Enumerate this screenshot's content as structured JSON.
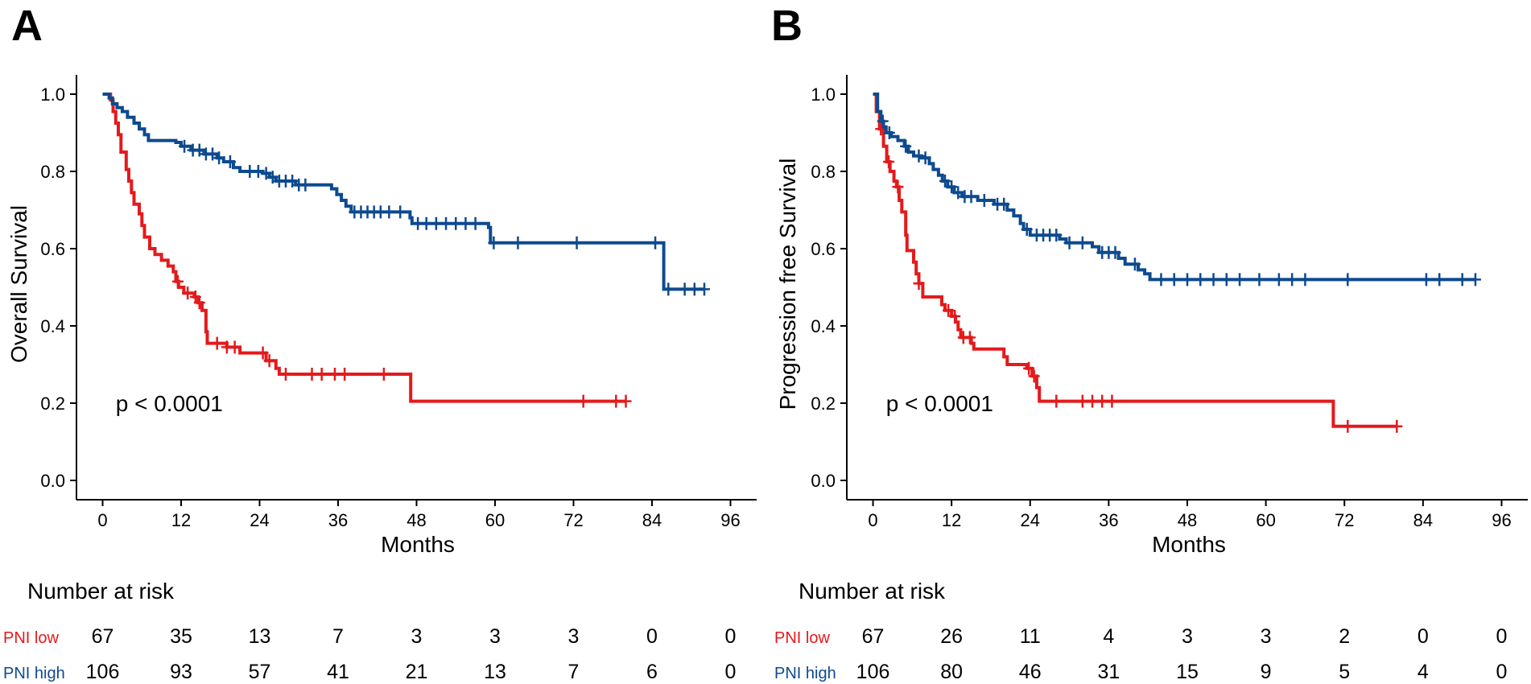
{
  "colors": {
    "low": "#e31a1c",
    "high": "#0d4a8f",
    "axis": "#000000"
  },
  "chart_data": [
    {
      "type": "line",
      "panel": "A",
      "ylabel": "Overall Survival",
      "xlabel": "Months",
      "xlim": [
        -4,
        100
      ],
      "ylim": [
        -0.05,
        1.05
      ],
      "xticks": [
        0,
        12,
        24,
        36,
        48,
        60,
        72,
        84,
        96
      ],
      "yticks": [
        0.0,
        0.2,
        0.4,
        0.6,
        0.8,
        1.0
      ],
      "ytick_labels": [
        "0.0",
        "0.2",
        "0.4",
        "0.6",
        "0.8",
        "1.0"
      ],
      "annotation": "p < 0.0001",
      "annotation_at": [
        2,
        0.2
      ],
      "series": [
        {
          "name": "PNI low",
          "color_key": "low",
          "points": [
            [
              0,
              1.0
            ],
            [
              1.2,
              0.985
            ],
            [
              1.6,
              0.955
            ],
            [
              2.0,
              0.925
            ],
            [
              2.4,
              0.895
            ],
            [
              2.8,
              0.85
            ],
            [
              3.6,
              0.805
            ],
            [
              4.0,
              0.775
            ],
            [
              4.4,
              0.745
            ],
            [
              4.8,
              0.715
            ],
            [
              5.6,
              0.69
            ],
            [
              6.0,
              0.66
            ],
            [
              6.4,
              0.63
            ],
            [
              7.2,
              0.6
            ],
            [
              8.0,
              0.585
            ],
            [
              9.0,
              0.57
            ],
            [
              10.0,
              0.555
            ],
            [
              10.8,
              0.54
            ],
            [
              11.2,
              0.515
            ],
            [
              11.6,
              0.5
            ],
            [
              12.4,
              0.485
            ],
            [
              14.0,
              0.475
            ],
            [
              14.6,
              0.46
            ],
            [
              15.2,
              0.44
            ],
            [
              15.8,
              0.385
            ],
            [
              16.0,
              0.355
            ],
            [
              19.0,
              0.345
            ],
            [
              21.0,
              0.33
            ],
            [
              25.0,
              0.31
            ],
            [
              26.5,
              0.29
            ],
            [
              27.0,
              0.275
            ],
            [
              47.0,
              0.275
            ],
            [
              47.1,
              0.205
            ],
            [
              80.0,
              0.205
            ]
          ],
          "censor_x": [
            11.5,
            13.0,
            14.2,
            14.8,
            17.5,
            19.0,
            20.2,
            24.5,
            25.5,
            28.0,
            32.0,
            33.5,
            35.5,
            37.0,
            43.0,
            73.5,
            78.5,
            80.0
          ]
        },
        {
          "name": "PNI high",
          "color_key": "high",
          "points": [
            [
              0,
              1.0
            ],
            [
              1.0,
              0.99
            ],
            [
              1.5,
              0.975
            ],
            [
              2.2,
              0.965
            ],
            [
              3.0,
              0.955
            ],
            [
              3.8,
              0.94
            ],
            [
              4.8,
              0.925
            ],
            [
              5.6,
              0.91
            ],
            [
              6.4,
              0.895
            ],
            [
              7.0,
              0.88
            ],
            [
              11.2,
              0.875
            ],
            [
              12.0,
              0.865
            ],
            [
              13.5,
              0.855
            ],
            [
              15.5,
              0.845
            ],
            [
              17.5,
              0.835
            ],
            [
              18.5,
              0.825
            ],
            [
              20.0,
              0.81
            ],
            [
              21.0,
              0.8
            ],
            [
              24.5,
              0.795
            ],
            [
              25.5,
              0.785
            ],
            [
              26.5,
              0.775
            ],
            [
              29.5,
              0.765
            ],
            [
              35.0,
              0.755
            ],
            [
              35.8,
              0.74
            ],
            [
              36.5,
              0.725
            ],
            [
              37.2,
              0.71
            ],
            [
              38.0,
              0.695
            ],
            [
              47.0,
              0.68
            ],
            [
              47.3,
              0.665
            ],
            [
              59.0,
              0.655
            ],
            [
              59.3,
              0.615
            ],
            [
              85.5,
              0.615
            ],
            [
              85.8,
              0.495
            ],
            [
              92.0,
              0.495
            ]
          ],
          "censor_x": [
            12.5,
            13.8,
            14.8,
            15.8,
            16.8,
            17.8,
            19.5,
            22.5,
            23.8,
            25.0,
            26.0,
            27.0,
            28.0,
            29.0,
            30.0,
            31.0,
            38.5,
            39.5,
            40.5,
            41.5,
            42.5,
            43.8,
            45.5,
            48.2,
            49.5,
            51.0,
            52.5,
            54.0,
            55.5,
            57.0,
            59.8,
            63.5,
            72.5,
            84.5,
            86.5,
            89.0,
            90.5,
            92.0
          ]
        }
      ]
    },
    {
      "type": "line",
      "panel": "B",
      "ylabel": "Progression free Survival",
      "xlabel": "Months",
      "xlim": [
        -4,
        100
      ],
      "ylim": [
        -0.05,
        1.05
      ],
      "xticks": [
        0,
        12,
        24,
        36,
        48,
        60,
        72,
        84,
        96
      ],
      "yticks": [
        0.0,
        0.2,
        0.4,
        0.6,
        0.8,
        1.0
      ],
      "ytick_labels": [
        "0.0",
        "0.2",
        "0.4",
        "0.6",
        "0.8",
        "1.0"
      ],
      "annotation": "p < 0.0001",
      "annotation_at": [
        2,
        0.2
      ],
      "series": [
        {
          "name": "PNI low",
          "color_key": "low",
          "points": [
            [
              0,
              1.0
            ],
            [
              0.5,
              0.955
            ],
            [
              1.0,
              0.91
            ],
            [
              1.6,
              0.865
            ],
            [
              2.1,
              0.825
            ],
            [
              2.6,
              0.8
            ],
            [
              3.2,
              0.775
            ],
            [
              3.6,
              0.76
            ],
            [
              4.0,
              0.725
            ],
            [
              4.4,
              0.695
            ],
            [
              5.0,
              0.635
            ],
            [
              5.2,
              0.595
            ],
            [
              6.2,
              0.565
            ],
            [
              6.6,
              0.535
            ],
            [
              7.0,
              0.51
            ],
            [
              7.6,
              0.475
            ],
            [
              10.5,
              0.455
            ],
            [
              11.0,
              0.44
            ],
            [
              12.0,
              0.425
            ],
            [
              12.6,
              0.41
            ],
            [
              13.0,
              0.39
            ],
            [
              13.4,
              0.37
            ],
            [
              15.0,
              0.355
            ],
            [
              15.4,
              0.34
            ],
            [
              20.0,
              0.32
            ],
            [
              20.5,
              0.3
            ],
            [
              23.5,
              0.29
            ],
            [
              24.3,
              0.27
            ],
            [
              25.0,
              0.24
            ],
            [
              25.4,
              0.205
            ],
            [
              70.0,
              0.205
            ],
            [
              70.3,
              0.14
            ],
            [
              80.0,
              0.14
            ]
          ],
          "censor_x": [
            1.2,
            2.4,
            3.8,
            7.0,
            11.5,
            12.5,
            13.8,
            14.8,
            23.8,
            24.6,
            28.0,
            32.0,
            33.5,
            35.0,
            36.5,
            72.5,
            80.0
          ]
        },
        {
          "name": "PNI high",
          "color_key": "high",
          "points": [
            [
              0,
              1.0
            ],
            [
              0.7,
              0.955
            ],
            [
              1.2,
              0.93
            ],
            [
              1.6,
              0.915
            ],
            [
              2.0,
              0.9
            ],
            [
              2.8,
              0.89
            ],
            [
              3.8,
              0.88
            ],
            [
              4.8,
              0.865
            ],
            [
              5.4,
              0.85
            ],
            [
              6.2,
              0.84
            ],
            [
              7.4,
              0.835
            ],
            [
              8.6,
              0.82
            ],
            [
              9.2,
              0.805
            ],
            [
              10.0,
              0.79
            ],
            [
              10.6,
              0.775
            ],
            [
              11.4,
              0.76
            ],
            [
              12.4,
              0.745
            ],
            [
              13.6,
              0.735
            ],
            [
              16.0,
              0.725
            ],
            [
              18.5,
              0.715
            ],
            [
              20.5,
              0.7
            ],
            [
              21.5,
              0.685
            ],
            [
              22.5,
              0.665
            ],
            [
              23.0,
              0.65
            ],
            [
              24.0,
              0.635
            ],
            [
              28.5,
              0.625
            ],
            [
              29.5,
              0.615
            ],
            [
              33.5,
              0.605
            ],
            [
              34.5,
              0.59
            ],
            [
              37.5,
              0.575
            ],
            [
              38.5,
              0.56
            ],
            [
              40.5,
              0.545
            ],
            [
              41.5,
              0.535
            ],
            [
              42.3,
              0.52
            ],
            [
              92.0,
              0.52
            ]
          ],
          "censor_x": [
            1.5,
            2.5,
            5.0,
            7.0,
            8.0,
            11.0,
            12.0,
            13.0,
            14.0,
            15.0,
            17.0,
            19.0,
            20.0,
            23.5,
            25.0,
            26.0,
            27.0,
            28.0,
            30.0,
            32.0,
            35.0,
            36.0,
            37.0,
            40.0,
            44.0,
            46.0,
            48.0,
            50.0,
            52.0,
            54.0,
            56.0,
            59.0,
            62.0,
            64.0,
            66.0,
            72.5,
            84.5,
            86.5,
            90.0,
            92.0
          ]
        }
      ]
    }
  ],
  "risk_tables": [
    {
      "title": "Number at risk",
      "rows": [
        {
          "label": "PNI low",
          "color_key": "low",
          "values": [
            "67",
            "35",
            "13",
            "7",
            "3",
            "3",
            "3",
            "0",
            "0"
          ]
        },
        {
          "label": "PNI high",
          "color_key": "high",
          "values": [
            "106",
            "93",
            "57",
            "41",
            "21",
            "13",
            "7",
            "6",
            "0"
          ]
        }
      ]
    },
    {
      "title": "Number at risk",
      "rows": [
        {
          "label": "PNI low",
          "color_key": "low",
          "values": [
            "67",
            "26",
            "11",
            "4",
            "3",
            "3",
            "2",
            "0",
            "0"
          ]
        },
        {
          "label": "PNI high",
          "color_key": "high",
          "values": [
            "106",
            "80",
            "46",
            "31",
            "15",
            "9",
            "5",
            "4",
            "0"
          ]
        }
      ]
    }
  ]
}
